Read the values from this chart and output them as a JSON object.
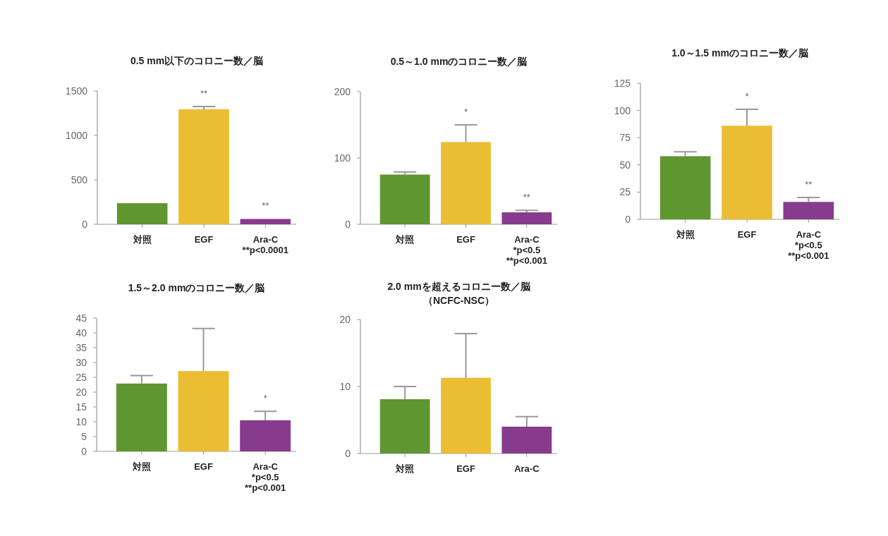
{
  "chart_data": [
    {
      "type": "bar",
      "title": "0.5 mm以下のコロニー数／脳",
      "categories": [
        "対照",
        "EGF",
        "Ara-C"
      ],
      "values": [
        237,
        1295,
        60
      ],
      "colors": [
        "#5f962f",
        "#ebbd33",
        "#873b8c"
      ],
      "errors": [
        null,
        [
          1295,
          1326
        ],
        null
      ],
      "ylim": [
        0,
        1500
      ],
      "yticks": [
        0,
        500,
        1000,
        1500
      ],
      "annotations": [
        {
          "text": "**",
          "x": "EGF",
          "y": 1326
        },
        {
          "text": "**",
          "x": "Ara-C",
          "y": 60
        },
        "**p<0.0001"
      ]
    },
    {
      "type": "bar",
      "title": "0.5～1.0 mmのコロニー数／脳",
      "categories": [
        "対照",
        "EGF",
        "Ara-C"
      ],
      "values": [
        75,
        124,
        18
      ],
      "colors": [
        "#5f962f",
        "#ebbd33",
        "#873b8c"
      ],
      "errors": [
        [
          75,
          79
        ],
        [
          124,
          150
        ],
        [
          18,
          21
        ]
      ],
      "ylim": [
        0,
        200
      ],
      "yticks": [
        0,
        100,
        200
      ],
      "annotations": [
        {
          "text": "*",
          "x": "EGF",
          "y": 150
        },
        {
          "text": "**",
          "x": "Ara-C",
          "y": 21
        },
        "*p<0.5",
        "**p<0.001"
      ]
    },
    {
      "type": "bar",
      "title": "1.0～1.5 mmのコロニー数／脳",
      "categories": [
        "対照",
        "EGF",
        "Ara-C"
      ],
      "values": [
        58,
        86,
        16
      ],
      "colors": [
        "#5f962f",
        "#ebbd33",
        "#873b8c"
      ],
      "errors": [
        [
          58,
          62
        ],
        [
          86,
          101
        ],
        [
          16,
          20
        ]
      ],
      "ylim": [
        0,
        125
      ],
      "yticks": [
        0,
        25,
        50,
        75,
        100,
        125
      ],
      "annotations": [
        {
          "text": "*",
          "x": "EGF",
          "y": 101
        },
        {
          "text": "**",
          "x": "Ara-C",
          "y": 20
        },
        "*p<0.5",
        "**p<0.001"
      ]
    },
    {
      "type": "bar",
      "title": "1.5～2.0 mmのコロニー数／脳",
      "categories": [
        "対照",
        "EGF",
        "Ara-C"
      ],
      "values": [
        22.9,
        27.1,
        10.5
      ],
      "colors": [
        "#5f962f",
        "#ebbd33",
        "#873b8c"
      ],
      "errors": [
        [
          22.9,
          25.6
        ],
        [
          27.1,
          41.5
        ],
        [
          10.5,
          13.5
        ]
      ],
      "ylim": [
        0,
        45
      ],
      "yticks": [
        0,
        5,
        10,
        15,
        20,
        25,
        30,
        35,
        40,
        45
      ],
      "annotations": [
        {
          "text": "*",
          "x": "Ara-C",
          "y": 13.5
        },
        "*p<0.5",
        "**p<0.001"
      ]
    },
    {
      "type": "bar",
      "title": "2.0 mmを超えるコロニー数／脳",
      "subtitle": "（NCFC-NSC）",
      "categories": [
        "対照",
        "EGF",
        "Ara-C"
      ],
      "values": [
        8.1,
        11.3,
        4
      ],
      "colors": [
        "#5f962f",
        "#ebbd33",
        "#873b8c"
      ],
      "errors": [
        [
          8.1,
          10
        ],
        [
          11.3,
          17.9
        ],
        [
          4,
          5.5
        ]
      ],
      "ylim": [
        0,
        20
      ],
      "yticks": [
        0,
        10,
        20
      ]
    }
  ]
}
